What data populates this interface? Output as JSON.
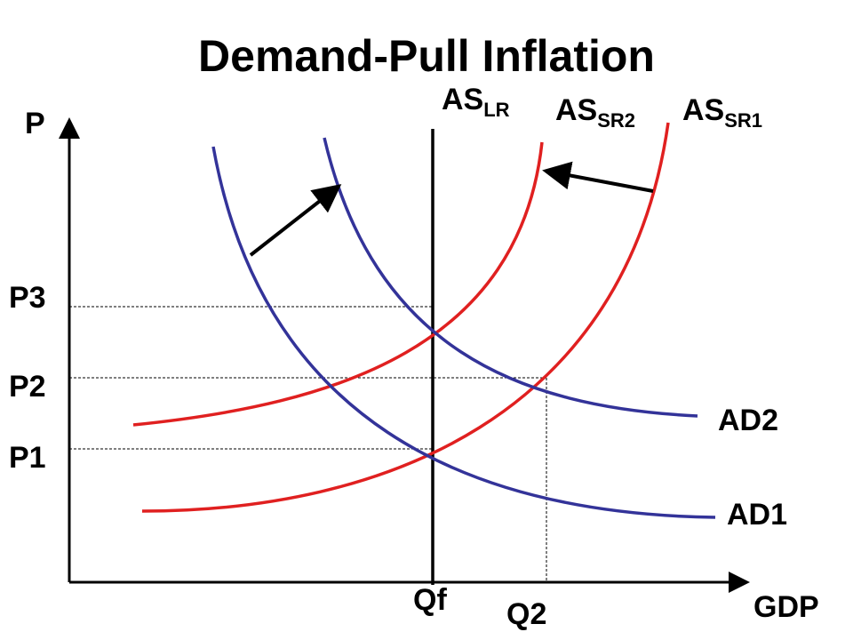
{
  "title": "Demand-Pull Inflation",
  "axes": {
    "y_label": "P",
    "x_label": "GDP"
  },
  "curves": [
    {
      "label": "AS",
      "subscript": "LR"
    },
    {
      "label": "AS",
      "subscript": "SR2"
    },
    {
      "label": "AS",
      "subscript": "SR1"
    },
    {
      "label": "AD2"
    },
    {
      "label": "AD1"
    }
  ],
  "price_levels": [
    "P3",
    "P2",
    "P1"
  ],
  "quantities": [
    "Qf",
    "Q2"
  ]
}
